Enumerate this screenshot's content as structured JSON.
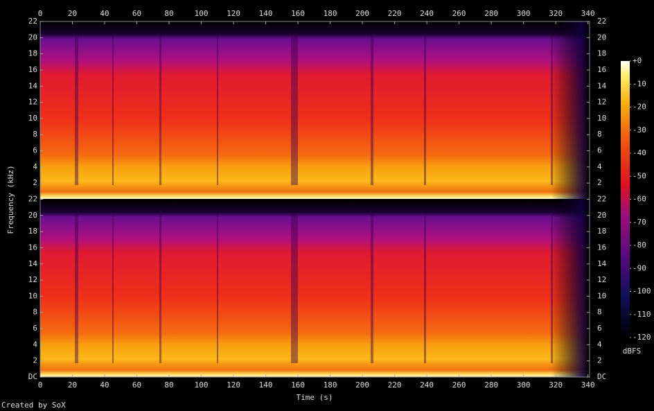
{
  "chart_data": {
    "type": "spectrogram",
    "x_label": "Time (s)",
    "y_label": "Frequency (kHz)",
    "xlim": [
      0,
      341
    ],
    "xticks": [
      0,
      20,
      40,
      60,
      80,
      100,
      120,
      140,
      160,
      180,
      200,
      220,
      240,
      260,
      280,
      300,
      320,
      340
    ],
    "channels": [
      {
        "ylim": [
          0,
          22
        ],
        "yticks": [
          2,
          4,
          6,
          8,
          10,
          12,
          14,
          16,
          18,
          20,
          22
        ]
      },
      {
        "ylim": [
          0,
          22
        ],
        "yticks": [
          {
            "value": 0,
            "label": "DC"
          },
          2,
          4,
          6,
          8,
          10,
          12,
          14,
          16,
          18,
          20,
          22
        ]
      }
    ],
    "colorbar": {
      "label": "dBFS",
      "lim": [
        -120,
        0
      ],
      "ticks": [
        {
          "value": 0,
          "label": "+0"
        },
        -10,
        -20,
        -30,
        -40,
        -50,
        -60,
        -70,
        -80,
        -90,
        -100,
        -110,
        -120
      ]
    },
    "credit": "Created by SoX"
  }
}
